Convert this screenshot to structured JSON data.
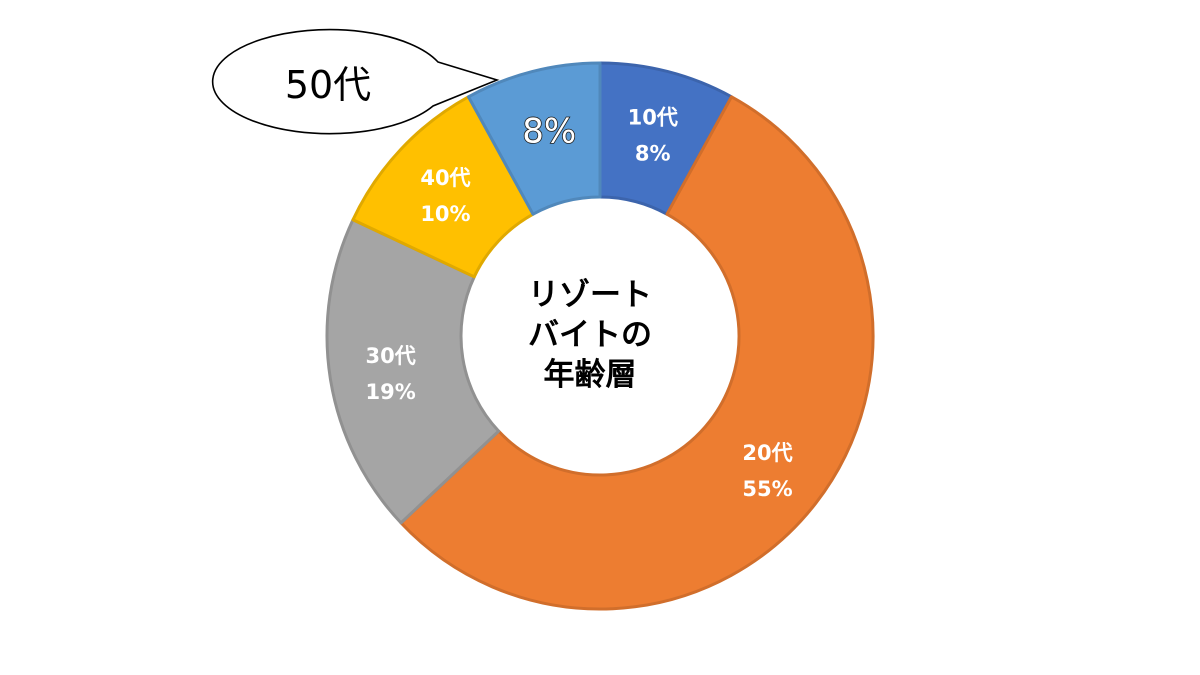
{
  "chart_data": {
    "type": "pie",
    "style": "donut",
    "title": "リゾートバイトの年齢層",
    "title_lines": [
      "リゾート",
      "バイトの",
      "年齢層"
    ],
    "slices": [
      {
        "label": "10代",
        "value": 8,
        "display": "8%",
        "color": "#4472c4"
      },
      {
        "label": "20代",
        "value": 55,
        "display": "55%",
        "color": "#ed7d31"
      },
      {
        "label": "30代",
        "value": 19,
        "display": "19%",
        "color": "#a5a5a5"
      },
      {
        "label": "40代",
        "value": 10,
        "display": "10%",
        "color": "#ffc000"
      },
      {
        "label": "50代",
        "value": 8,
        "display": "8%",
        "color": "#5b9bd5"
      }
    ]
  }
}
